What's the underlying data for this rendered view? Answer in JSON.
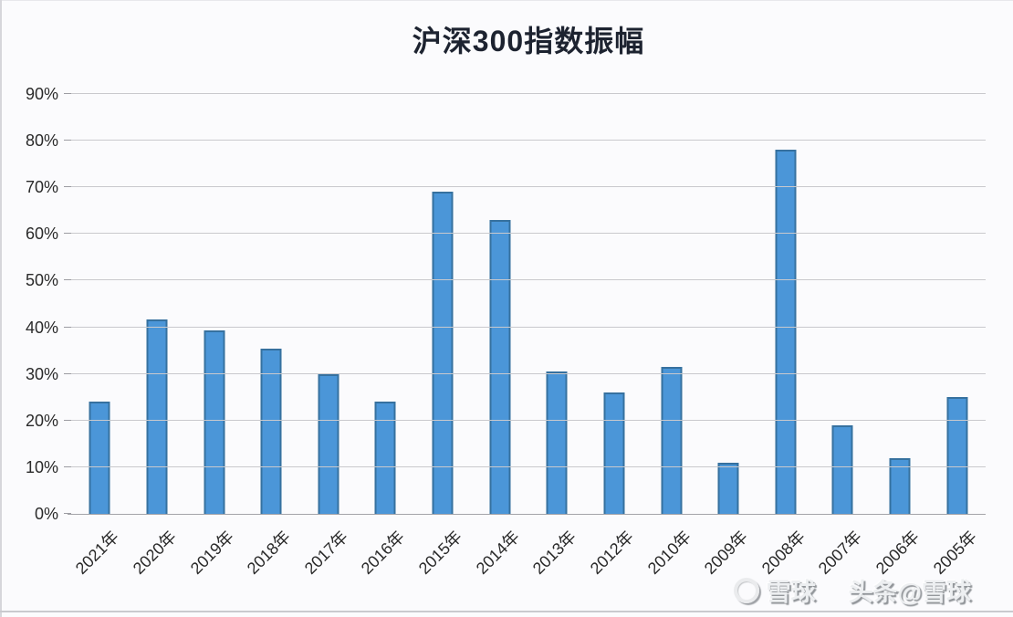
{
  "title": "沪深300指数振幅",
  "chart_data": {
    "type": "bar",
    "title": "沪深300指数振幅",
    "categories": [
      "2021年",
      "2020年",
      "2019年",
      "2018年",
      "2017年",
      "2016年",
      "2015年",
      "2014年",
      "2013年",
      "2012年",
      "2010年",
      "2009年",
      "2008年",
      "2007年",
      "2006年",
      "2005年"
    ],
    "values": [
      24,
      41.7,
      39.4,
      35.5,
      30,
      24,
      69,
      63,
      30.5,
      26,
      31.5,
      11,
      78,
      19,
      12,
      25
    ],
    "xlabel": "",
    "ylabel": "",
    "ylim": [
      0,
      90
    ],
    "ytick_step": 10,
    "ytick_labels": [
      "0%",
      "10%",
      "20%",
      "30%",
      "40%",
      "50%",
      "60%",
      "70%",
      "80%",
      "90%"
    ],
    "grid": true,
    "legend": false,
    "bar_color": "#4b96d8",
    "bar_border_color": "#36719f"
  },
  "watermark": {
    "brand": "雪球",
    "credit": "头条@雪球"
  },
  "colors": {
    "background": "#fbfbfd",
    "gridline": "#c9c9cd",
    "axis_text": "#2a2a2a",
    "title_text": "#1d2330"
  }
}
